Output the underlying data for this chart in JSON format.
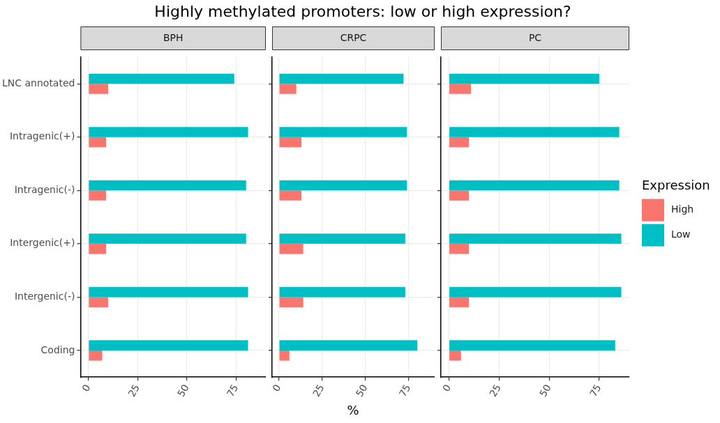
{
  "chart_data": [
    {
      "type": "bar",
      "orientation": "horizontal",
      "title": "Highly methylated promoters: low or high expression?",
      "subtitle": "BPH",
      "categories": [
        "LNC annotated",
        "Intragenic(+)",
        "Intragenic(-)",
        "Intergenic(+)",
        "Intergenic(-)",
        "Coding"
      ],
      "series": [
        {
          "color": "#00bfc4",
          "values": [
            74,
            81,
            80,
            80,
            81,
            81
          ]
        },
        {
          "color": "#f8766d",
          "values": [
            10,
            9,
            9,
            9,
            10,
            7
          ]
        }
      ],
      "xlim": [
        -4,
        90
      ],
      "xticks": [
        0,
        25,
        50,
        75
      ],
      "grid": true,
      "legend": false
    },
    {
      "type": "bar",
      "orientation": "horizontal",
      "subtitle": "CRPC",
      "xlabel": "%",
      "categories": [
        null,
        null,
        null,
        null,
        null,
        null
      ],
      "series": [
        {
          "color": "#00bfc4",
          "values": [
            72,
            74,
            74,
            73,
            73,
            80
          ]
        },
        {
          "color": "#f8766d",
          "values": [
            10,
            13,
            13,
            14,
            14,
            6
          ]
        }
      ],
      "xlim": [
        -4,
        90
      ],
      "xticks": [
        0,
        25,
        50,
        75
      ],
      "grid": true,
      "legend": false,
      "tick_labels": "x"
    },
    {
      "type": "bar",
      "orientation": "horizontal",
      "subtitle": "PC",
      "legend_title": "Expression",
      "categories": [
        null,
        null,
        null,
        null,
        null,
        null
      ],
      "series": [
        {
          "name": "Low",
          "color": "#00bfc4",
          "values": [
            75,
            85,
            85,
            86,
            86,
            83
          ]
        },
        {
          "name": "High",
          "color": "#f8766d",
          "values": [
            11,
            10,
            10,
            10,
            10,
            6
          ]
        }
      ],
      "xlim": [
        -4,
        90
      ],
      "xticks": [
        0,
        25,
        50,
        75
      ],
      "grid": true,
      "legend": "right",
      "tick_labels": "x"
    }
  ]
}
